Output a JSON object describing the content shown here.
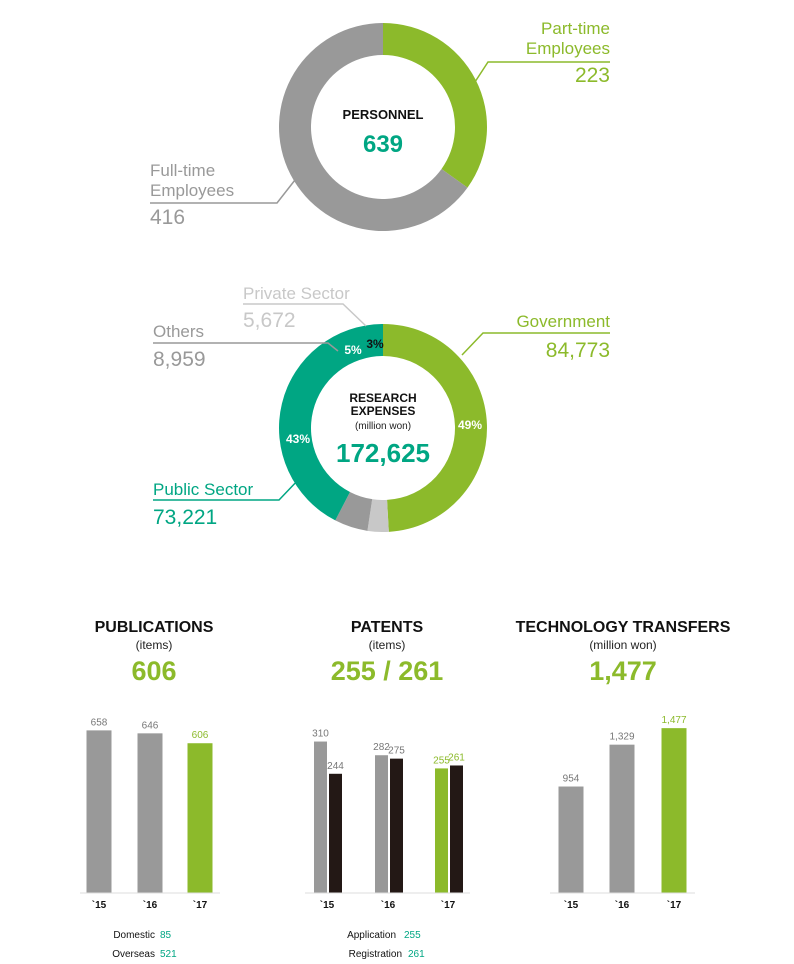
{
  "colors": {
    "green": "#8cba2b",
    "teal": "#00a683",
    "gray": "#999999",
    "light_gray": "#c8c8c8",
    "black": "#231815",
    "text": "#111111"
  },
  "personnel": {
    "title": "PERSONNEL",
    "total": "639",
    "part_time": {
      "label_line1": "Part-time",
      "label_line2": "Employees",
      "value": "223"
    },
    "full_time": {
      "label_line1": "Full-time",
      "label_line2": "Employees",
      "value": "416"
    }
  },
  "research": {
    "title_line1": "RESEARCH",
    "title_line2": "EXPENSES",
    "unit": "(million won)",
    "total": "172,625",
    "government": {
      "label": "Government",
      "value": "84,773",
      "pct": "49%"
    },
    "public_sector": {
      "label": "Public Sector",
      "value": "73,221",
      "pct": "43%"
    },
    "others": {
      "label": "Others",
      "value": "8,959",
      "pct": "5%"
    },
    "private_sector": {
      "label": "Private Sector",
      "value": "5,672",
      "pct": "3%"
    }
  },
  "publications": {
    "title": "PUBLICATIONS",
    "unit": "(items)",
    "headline": "606",
    "legend": [
      {
        "label": "Domestic",
        "value": "85"
      },
      {
        "label": "Overseas",
        "value": "521"
      }
    ]
  },
  "patents": {
    "title": "PATENTS",
    "unit": "(items)",
    "headline": "255 / 261",
    "legend": [
      {
        "label": "Application",
        "value": "255"
      },
      {
        "label": "Registration",
        "value": "261"
      }
    ]
  },
  "transfers": {
    "title": "TECHNOLOGY TRANSFERS",
    "unit": "(million won)",
    "headline": "1,477"
  },
  "chart_data": [
    {
      "type": "pie",
      "title": "PERSONNEL",
      "categories": [
        "Part-time Employees",
        "Full-time Employees"
      ],
      "values": [
        223,
        416
      ],
      "total": 639
    },
    {
      "type": "pie",
      "title": "RESEARCH EXPENSES",
      "unit": "(million won)",
      "categories": [
        "Government",
        "Private Sector",
        "Others",
        "Public Sector"
      ],
      "values": [
        84773,
        5672,
        8959,
        73221
      ],
      "percent_labels": [
        "49%",
        "3%",
        "5%",
        "43%"
      ],
      "total": 172625
    },
    {
      "type": "bar",
      "title": "PUBLICATIONS",
      "categories": [
        "`15",
        "`16",
        "`17"
      ],
      "values": [
        658,
        646,
        606
      ],
      "value_labels": [
        "658",
        "646",
        "606"
      ],
      "ylim": [
        0,
        700
      ]
    },
    {
      "type": "bar",
      "title": "PATENTS",
      "categories": [
        "`15",
        "`16",
        "`17"
      ],
      "series": [
        {
          "name": "Application",
          "values": [
            310,
            282,
            255
          ],
          "value_labels": [
            "310",
            "282",
            "255"
          ]
        },
        {
          "name": "Registration",
          "values": [
            244,
            275,
            261
          ],
          "value_labels": [
            "244",
            "275",
            "261"
          ]
        }
      ],
      "ylim": [
        0,
        350
      ]
    },
    {
      "type": "bar",
      "title": "TECHNOLOGY TRANSFERS",
      "categories": [
        "`15",
        "`16",
        "`17"
      ],
      "values": [
        954,
        1329,
        1477
      ],
      "value_labels": [
        "954",
        "1,329",
        "1,477"
      ],
      "ylim": [
        0,
        1550
      ]
    }
  ]
}
